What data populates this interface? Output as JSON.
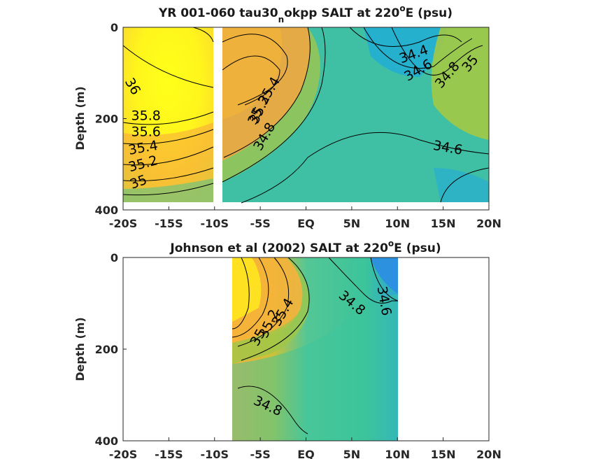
{
  "chart_data": [
    {
      "type": "heatmap",
      "title_main": "YR 001-060 tau30",
      "title_sub": "n",
      "title_mid": "okpp SALT at 220",
      "title_sup": "o",
      "title_end": "E (psu)",
      "ylabel": "Depth (m)",
      "x_ticks": [
        "-20S",
        "-15S",
        "-10S",
        "-5S",
        "EQ",
        "5N",
        "10N",
        "15N",
        "20N"
      ],
      "y_ticks": [
        "0",
        "200",
        "400"
      ],
      "xlim": [
        -20,
        20
      ],
      "ylim": [
        400,
        0
      ],
      "data_gap_lat": [
        -10,
        -9.5
      ],
      "contour_labels": [
        {
          "text": "36",
          "lat": -19,
          "depth": 130,
          "rot": 60
        },
        {
          "text": "35.8",
          "lat": -17.5,
          "depth": 195,
          "rot": 0
        },
        {
          "text": "35.6",
          "lat": -17.5,
          "depth": 230,
          "rot": 0
        },
        {
          "text": "35.4",
          "lat": -17.8,
          "depth": 265,
          "rot": -10
        },
        {
          "text": "35.2",
          "lat": -17.8,
          "depth": 300,
          "rot": -15
        },
        {
          "text": "35",
          "lat": -18.3,
          "depth": 340,
          "rot": -20
        },
        {
          "text": "35.4",
          "lat": -4,
          "depth": 140,
          "rot": -60
        },
        {
          "text": "35.2",
          "lat": -5,
          "depth": 180,
          "rot": -65
        },
        {
          "text": "35",
          "lat": -5.5,
          "depth": 195,
          "rot": -65
        },
        {
          "text": "34.8",
          "lat": -4.5,
          "depth": 240,
          "rot": -60
        },
        {
          "text": "34.4",
          "lat": 11.8,
          "depth": 60,
          "rot": -20
        },
        {
          "text": "34.6",
          "lat": 12.3,
          "depth": 95,
          "rot": -30
        },
        {
          "text": "34.8",
          "lat": 15.5,
          "depth": 105,
          "rot": -50
        },
        {
          "text": "35",
          "lat": 18,
          "depth": 80,
          "rot": -50
        },
        {
          "text": "34.6",
          "lat": 15.5,
          "depth": 265,
          "rot": 10
        }
      ]
    },
    {
      "type": "heatmap",
      "title_main": "Johnson et al (2002) SALT at 220",
      "title_sup": "o",
      "title_end": "E (psu)",
      "ylabel": "Depth (m)",
      "x_ticks": [
        "-20S",
        "-15S",
        "-10S",
        "-5S",
        "EQ",
        "5N",
        "10N",
        "15N",
        "20N"
      ],
      "y_ticks": [
        "0",
        "200",
        "400"
      ],
      "xlim": [
        -20,
        20
      ],
      "ylim": [
        400,
        0
      ],
      "data_lat_range": [
        -8,
        10
      ],
      "contour_labels": [
        {
          "text": "35.4",
          "lat": -2.5,
          "depth": 120,
          "rot": -60
        },
        {
          "text": "35.2",
          "lat": -4,
          "depth": 145,
          "rot": -65
        },
        {
          "text": "35",
          "lat": -5.2,
          "depth": 175,
          "rot": -60
        },
        {
          "text": "34.8",
          "lat": 5,
          "depth": 100,
          "rot": 40
        },
        {
          "text": "34.6",
          "lat": 8.5,
          "depth": 95,
          "rot": 80
        },
        {
          "text": "34.8",
          "lat": -4.2,
          "depth": 325,
          "rot": 25
        }
      ]
    }
  ]
}
